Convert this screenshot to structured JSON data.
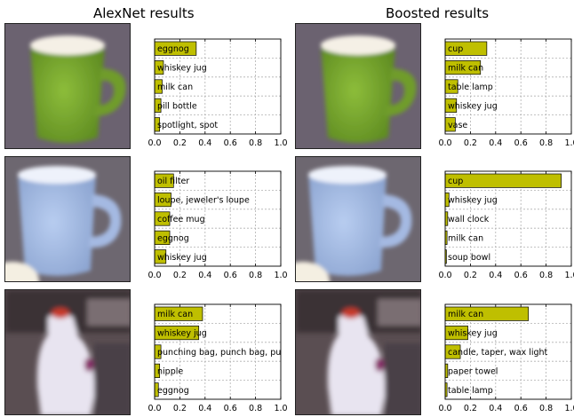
{
  "titles": {
    "left": "AlexNet results",
    "right": "Boosted results"
  },
  "colors": {
    "bar_fill": "#bfbf00",
    "bar_stroke": "#000000",
    "grid": "#b0b0b0"
  },
  "images": [
    {
      "row": 0,
      "subject": "green-mug",
      "column": "alexnet"
    },
    {
      "row": 0,
      "subject": "green-mug",
      "column": "boosted"
    },
    {
      "row": 1,
      "subject": "light-blue-mug",
      "column": "alexnet"
    },
    {
      "row": 1,
      "subject": "light-blue-mug",
      "column": "boosted"
    },
    {
      "row": 2,
      "subject": "white-jug",
      "column": "alexnet"
    },
    {
      "row": 2,
      "subject": "white-jug",
      "column": "boosted"
    }
  ],
  "chart_data": [
    {
      "type": "bar",
      "orientation": "horizontal",
      "column": "AlexNet results",
      "row": 0,
      "xlim": [
        0,
        1.0
      ],
      "xticks": [
        "0.0",
        "0.2",
        "0.4",
        "0.6",
        "0.8",
        "1.0"
      ],
      "grid": true,
      "categories": [
        "eggnog",
        "whiskey jug",
        "milk can",
        "pill bottle",
        "spotlight, spot"
      ],
      "values": [
        0.33,
        0.07,
        0.06,
        0.05,
        0.04
      ]
    },
    {
      "type": "bar",
      "orientation": "horizontal",
      "column": "Boosted results",
      "row": 0,
      "xlim": [
        0,
        1.0
      ],
      "xticks": [
        "0.0",
        "0.2",
        "0.4",
        "0.6",
        "0.8",
        "1.0"
      ],
      "grid": true,
      "categories": [
        "cup",
        "milk can",
        "table lamp",
        "whiskey jug",
        "vase"
      ],
      "values": [
        0.33,
        0.28,
        0.1,
        0.09,
        0.08
      ]
    },
    {
      "type": "bar",
      "orientation": "horizontal",
      "column": "AlexNet results",
      "row": 1,
      "xlim": [
        0,
        1.0
      ],
      "xticks": [
        "0.0",
        "0.2",
        "0.4",
        "0.6",
        "0.8",
        "1.0"
      ],
      "grid": true,
      "categories": [
        "oil filter",
        "loupe, jeweler's loupe",
        "coffee mug",
        "eggnog",
        "whiskey jug"
      ],
      "values": [
        0.15,
        0.13,
        0.12,
        0.12,
        0.09
      ]
    },
    {
      "type": "bar",
      "orientation": "horizontal",
      "column": "Boosted results",
      "row": 1,
      "xlim": [
        0,
        1.0
      ],
      "xticks": [
        "0.0",
        "0.2",
        "0.4",
        "0.6",
        "0.8",
        "1.0"
      ],
      "grid": true,
      "categories": [
        "cup",
        "whiskey jug",
        "wall clock",
        "milk can",
        "soup bowl"
      ],
      "values": [
        0.92,
        0.03,
        0.02,
        0.015,
        0.01
      ]
    },
    {
      "type": "bar",
      "orientation": "horizontal",
      "column": "AlexNet results",
      "row": 2,
      "xlim": [
        0,
        1.0
      ],
      "xticks": [
        "0.0",
        "0.2",
        "0.4",
        "0.6",
        "0.8",
        "1.0"
      ],
      "grid": true,
      "categories": [
        "milk can",
        "whiskey jug",
        "punching bag, punch bag, punc",
        "nipple",
        "eggnog"
      ],
      "values": [
        0.38,
        0.35,
        0.05,
        0.04,
        0.03
      ]
    },
    {
      "type": "bar",
      "orientation": "horizontal",
      "column": "Boosted results",
      "row": 2,
      "xlim": [
        0,
        1.0
      ],
      "xticks": [
        "0.0",
        "0.2",
        "0.4",
        "0.6",
        "0.8",
        "1.0"
      ],
      "grid": true,
      "categories": [
        "milk can",
        "whiskey jug",
        "candle, taper, wax light",
        "paper towel",
        "table lamp"
      ],
      "values": [
        0.66,
        0.18,
        0.12,
        0.02,
        0.015
      ]
    }
  ]
}
